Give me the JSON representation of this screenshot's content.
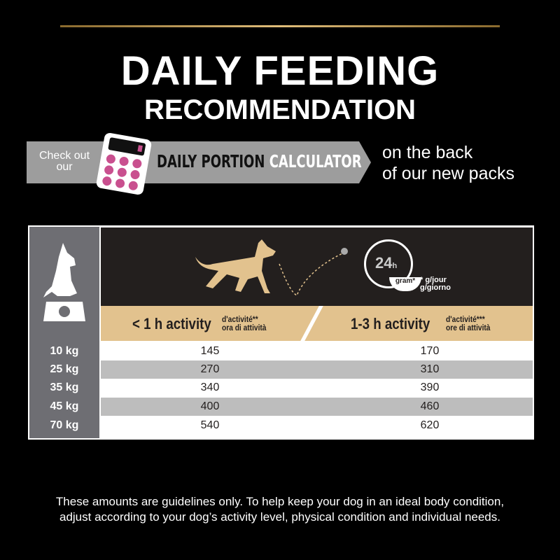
{
  "title": {
    "line1": "DAILY FEEDING",
    "line2": "RECOMMENDATION"
  },
  "banner": {
    "check": "Check out our",
    "daily_portion": "DAILY PORTION",
    "calculator": "CALCULATOR",
    "back_line1": "on the back",
    "back_line2": "of our new packs"
  },
  "colors": {
    "gold": "#e2c28e",
    "pink": "#c9508f",
    "gray": "#9d9d9d",
    "dark": "#231f1e"
  },
  "header": {
    "clock_label": "24",
    "clock_unit": "h",
    "bowl_label": "gram*",
    "unit_note_1": "* g/jour",
    "unit_note_2": "g/giorno",
    "col1": {
      "main": "< 1 h activity",
      "fr": "d'activité**",
      "it": "ora di attività"
    },
    "col2": {
      "main": "1-3 h activity",
      "fr": "d'activité***",
      "it": "ore di attività"
    }
  },
  "rows": [
    {
      "weight": "10 kg",
      "low": "145",
      "high": "170"
    },
    {
      "weight": "25 kg",
      "low": "270",
      "high": "310"
    },
    {
      "weight": "35 kg",
      "low": "340",
      "high": "390"
    },
    {
      "weight": "45 kg",
      "low": "400",
      "high": "460"
    },
    {
      "weight": "70 kg",
      "low": "540",
      "high": "620"
    }
  ],
  "footer": {
    "line1": "These amounts are guidelines only. To help keep your dog in an ideal body condition,",
    "line2": "adjust according to your dog’s activity level, physical condition and individual needs."
  }
}
